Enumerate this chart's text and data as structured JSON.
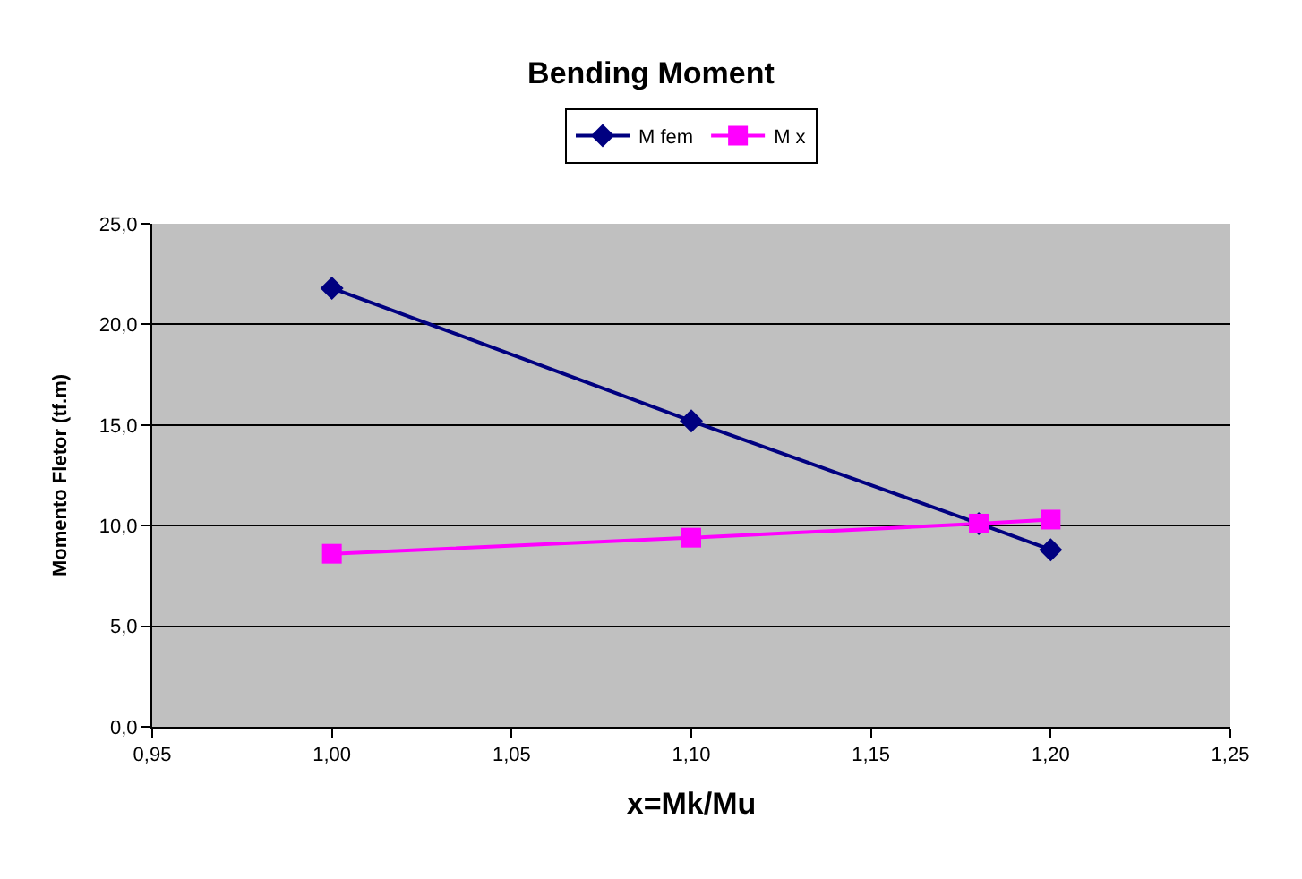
{
  "chart_data": {
    "type": "line",
    "title": "Bending Moment",
    "xlabel": "x=Mk/Mu",
    "ylabel": "Momento Fletor (tf.m)",
    "x": [
      1.0,
      1.1,
      1.18,
      1.2
    ],
    "series": [
      {
        "name": "M fem",
        "color": "#000080",
        "values": [
          21.8,
          15.2,
          10.1,
          8.8
        ],
        "marker": "diamond"
      },
      {
        "name": "M x",
        "color": "#ff00ff",
        "values": [
          8.6,
          9.4,
          10.1,
          10.3
        ],
        "marker": "square"
      }
    ],
    "xlim": [
      0.95,
      1.25
    ],
    "xticks": [
      {
        "value": 0.95,
        "label": "0,95"
      },
      {
        "value": 1.0,
        "label": "1,00"
      },
      {
        "value": 1.05,
        "label": "1,05"
      },
      {
        "value": 1.1,
        "label": "1,10"
      },
      {
        "value": 1.15,
        "label": "1,15"
      },
      {
        "value": 1.2,
        "label": "1,20"
      },
      {
        "value": 1.25,
        "label": "1,25"
      }
    ],
    "ylim": [
      0,
      25
    ],
    "yticks": [
      {
        "value": 0,
        "label": "0,0"
      },
      {
        "value": 5,
        "label": "5,0"
      },
      {
        "value": 10,
        "label": "10,0"
      },
      {
        "value": 15,
        "label": "15,0"
      },
      {
        "value": 20,
        "label": "20,0"
      },
      {
        "value": 25,
        "label": "25,0"
      }
    ],
    "grid": "y",
    "legend": "top",
    "line_style": "solid"
  }
}
